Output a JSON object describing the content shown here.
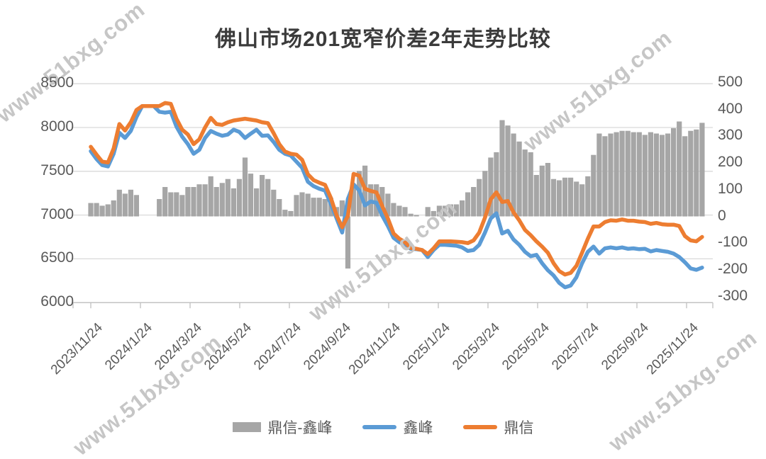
{
  "title": "佛山市场201宽窄价差2年走势比较",
  "watermark": {
    "text": "www.51bxg.com"
  },
  "chart_data": {
    "type": "bar+line combo",
    "title": "佛山市场201宽窄价差2年走势比较",
    "grid": true,
    "legend_position": "bottom",
    "x_tick_labels": [
      "2023/11/24",
      "2024/1/24",
      "2024/3/24",
      "2024/5/24",
      "2024/7/24",
      "2024/9/24",
      "2024/11/24",
      "2025/1/24",
      "2025/3/24",
      "2025/5/24",
      "2025/7/24",
      "2025/9/24",
      "2025/11/24"
    ],
    "left_axis": {
      "min": 6000,
      "max": 8500,
      "label_values": [
        8500,
        8000,
        7500,
        7000,
        6500,
        6000
      ]
    },
    "right_axis": {
      "min": -300,
      "max": 500,
      "label_values": [
        500,
        400,
        300,
        200,
        100,
        0,
        -100,
        -200,
        -300
      ]
    },
    "series": [
      {
        "name": "鼎信-鑫峰",
        "type": "bar",
        "axis": "right",
        "color": "#A6A6A6",
        "values": [
          50,
          50,
          40,
          45,
          60,
          100,
          85,
          100,
          80,
          0,
          0,
          0,
          65,
          110,
          90,
          90,
          80,
          110,
          110,
          120,
          120,
          150,
          110,
          125,
          140,
          105,
          140,
          220,
          160,
          105,
          155,
          140,
          100,
          65,
          25,
          20,
          80,
          90,
          85,
          70,
          70,
          65,
          70,
          35,
          60,
          -195,
          120,
          170,
          190,
          120,
          120,
          110,
          85,
          50,
          40,
          35,
          10,
          5,
          0,
          35,
          20,
          40,
          40,
          45,
          45,
          60,
          90,
          110,
          140,
          170,
          220,
          240,
          360,
          340,
          310,
          280,
          250,
          240,
          155,
          190,
          200,
          140,
          135,
          145,
          145,
          130,
          120,
          150,
          230,
          310,
          300,
          310,
          315,
          320,
          320,
          315,
          315,
          305,
          315,
          310,
          305,
          310,
          330,
          355,
          300,
          320,
          325,
          350
        ]
      },
      {
        "name": "鑫峰",
        "type": "line",
        "axis": "left",
        "color": "#5B9BD5",
        "values": [
          7730,
          7640,
          7570,
          7555,
          7700,
          7940,
          7880,
          7960,
          8120,
          8245,
          8245,
          8245,
          8180,
          8170,
          8180,
          8010,
          7895,
          7810,
          7700,
          7745,
          7880,
          7960,
          7930,
          7905,
          7920,
          7975,
          7950,
          7880,
          7930,
          7975,
          7905,
          7910,
          7835,
          7745,
          7700,
          7680,
          7610,
          7540,
          7380,
          7330,
          7300,
          7280,
          7130,
          6965,
          6800,
          7185,
          7350,
          7280,
          7110,
          7155,
          7140,
          6995,
          6875,
          6740,
          6690,
          6655,
          6615,
          6610,
          6600,
          6520,
          6600,
          6660,
          6660,
          6655,
          6650,
          6630,
          6590,
          6600,
          6660,
          6800,
          6960,
          7020,
          6790,
          6820,
          6720,
          6660,
          6580,
          6530,
          6545,
          6450,
          6370,
          6310,
          6225,
          6175,
          6195,
          6290,
          6450,
          6580,
          6640,
          6560,
          6620,
          6630,
          6620,
          6630,
          6615,
          6620,
          6610,
          6615,
          6585,
          6600,
          6590,
          6580,
          6560,
          6520,
          6460,
          6390,
          6375,
          6400
        ]
      },
      {
        "name": "鼎信",
        "type": "line",
        "axis": "left",
        "color": "#ED7D31",
        "values": [
          7780,
          7690,
          7610,
          7600,
          7760,
          8040,
          7965,
          8060,
          8200,
          8245,
          8245,
          8245,
          8245,
          8280,
          8270,
          8100,
          7975,
          7920,
          7810,
          7865,
          8000,
          8110,
          8040,
          8030,
          8060,
          8080,
          8090,
          8100,
          8090,
          8080,
          8060,
          8050,
          7935,
          7810,
          7725,
          7700,
          7690,
          7630,
          7465,
          7400,
          7370,
          7345,
          7200,
          7000,
          6860,
          6990,
          7470,
          7450,
          7300,
          7275,
          7260,
          7105,
          6960,
          6790,
          6730,
          6690,
          6625,
          6615,
          6600,
          6555,
          6620,
          6700,
          6700,
          6700,
          6695,
          6690,
          6680,
          6710,
          6800,
          6970,
          7180,
          7260,
          7150,
          7160,
          7030,
          6940,
          6830,
          6770,
          6700,
          6640,
          6570,
          6450,
          6360,
          6320,
          6340,
          6420,
          6570,
          6730,
          6870,
          6870,
          6920,
          6940,
          6935,
          6950,
          6935,
          6935,
          6925,
          6920,
          6900,
          6910,
          6895,
          6890,
          6890,
          6875,
          6760,
          6710,
          6700,
          6750
        ]
      }
    ]
  }
}
